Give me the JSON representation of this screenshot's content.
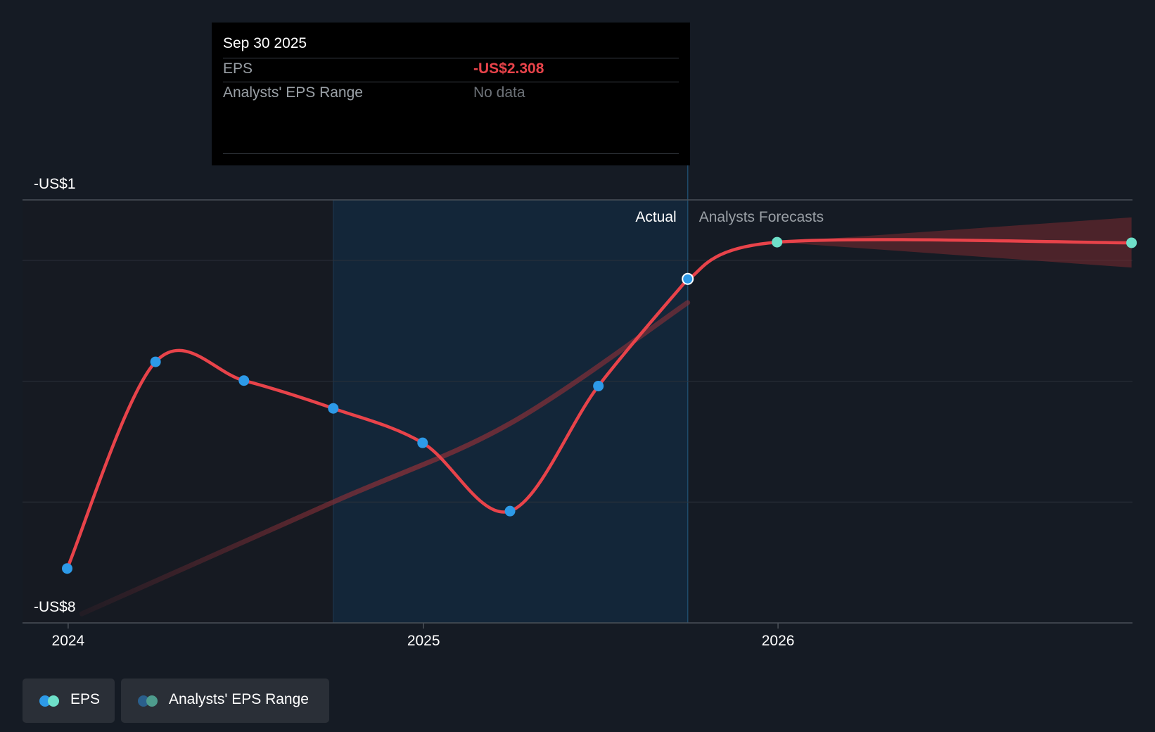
{
  "tooltip": {
    "date": "Sep 30 2025",
    "rows": [
      {
        "label": "EPS",
        "value": "-US$2.308"
      },
      {
        "label": "Analysts' EPS Range",
        "value": "No data"
      }
    ]
  },
  "labels": {
    "actual": "Actual",
    "forecast": "Analysts Forecasts"
  },
  "legend": {
    "eps": "EPS",
    "range": "Analysts' EPS Range"
  },
  "colors": {
    "background": "#151b24",
    "eps_line": "#e8434a",
    "actual_point": "#2d9ae8",
    "forecast_point": "#6ee0c9",
    "highlight": "#13293d",
    "range_band": "#7a2a30",
    "trend_line": "#8a3038"
  },
  "chart_data": {
    "type": "line",
    "title": "",
    "xlabel": "",
    "ylabel": "",
    "x_ticks": [
      "2024",
      "2025",
      "2026"
    ],
    "y_ticks": [
      "-US$1",
      "-US$8"
    ],
    "ylim": [
      -8,
      -1
    ],
    "xlim": [
      "2023-11-15",
      "2027-01-01"
    ],
    "highlight_range": [
      "2024-09-30",
      "2025-09-30"
    ],
    "series": [
      {
        "name": "EPS",
        "kind": "actual",
        "points": [
          {
            "x": "2023-12-31",
            "y": -7.1
          },
          {
            "x": "2024-03-31",
            "y": -3.68
          },
          {
            "x": "2024-06-30",
            "y": -3.99
          },
          {
            "x": "2024-09-30",
            "y": -4.45
          },
          {
            "x": "2024-12-31",
            "y": -5.02
          },
          {
            "x": "2025-03-31",
            "y": -6.15
          },
          {
            "x": "2025-06-30",
            "y": -4.08
          },
          {
            "x": "2025-09-30",
            "y": -2.308
          }
        ]
      },
      {
        "name": "EPS",
        "kind": "forecast",
        "points": [
          {
            "x": "2025-12-31",
            "y": -1.7
          },
          {
            "x": "2026-12-31",
            "y": -1.71
          }
        ]
      },
      {
        "name": "Analysts' EPS Range",
        "kind": "range",
        "points": [
          {
            "x": "2025-12-31",
            "low": -1.7,
            "high": -1.7
          },
          {
            "x": "2026-12-31",
            "low": -2.12,
            "high": -1.29
          }
        ]
      },
      {
        "name": "trend",
        "kind": "trend",
        "points": [
          {
            "x": "2024-01-15",
            "y": -7.85
          },
          {
            "x": "2024-09-30",
            "y": -6.0
          },
          {
            "x": "2025-03-31",
            "y": -4.7
          },
          {
            "x": "2025-09-30",
            "y": -2.7
          }
        ]
      }
    ]
  }
}
